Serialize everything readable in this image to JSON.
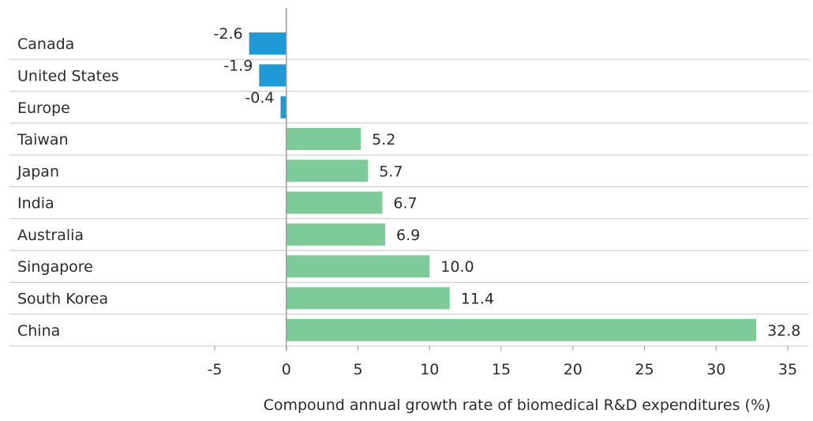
{
  "chart_data": {
    "type": "bar",
    "orientation": "horizontal",
    "categories": [
      "Canada",
      "United States",
      "Europe",
      "Taiwan",
      "Japan",
      "India",
      "Australia",
      "Singapore",
      "South Korea",
      "China"
    ],
    "values": [
      -2.6,
      -1.9,
      -0.4,
      5.2,
      5.7,
      6.7,
      6.9,
      10.0,
      11.4,
      32.8
    ],
    "value_labels": [
      "-2.6",
      "-1.9",
      "-0.4",
      "5.2",
      "5.7",
      "6.7",
      "6.9",
      "10.0",
      "11.4",
      "32.8"
    ],
    "title": "",
    "xlabel": "Compound annual growth rate of biomedical R&D expenditures (%)",
    "ylabel": "",
    "xlim": [
      -5,
      35
    ],
    "xticks": [
      -5,
      0,
      5,
      10,
      15,
      20,
      25,
      30,
      35
    ],
    "xtick_labels": [
      "-5",
      "0",
      "5",
      "10",
      "15",
      "20",
      "25",
      "30",
      "35"
    ],
    "colors": {
      "negative": "#1f9ad6",
      "positive": "#7ecb9a",
      "row_divider": "#c8c8c8",
      "axis": "#9a9a9a"
    },
    "grid": false,
    "legend": "none"
  }
}
